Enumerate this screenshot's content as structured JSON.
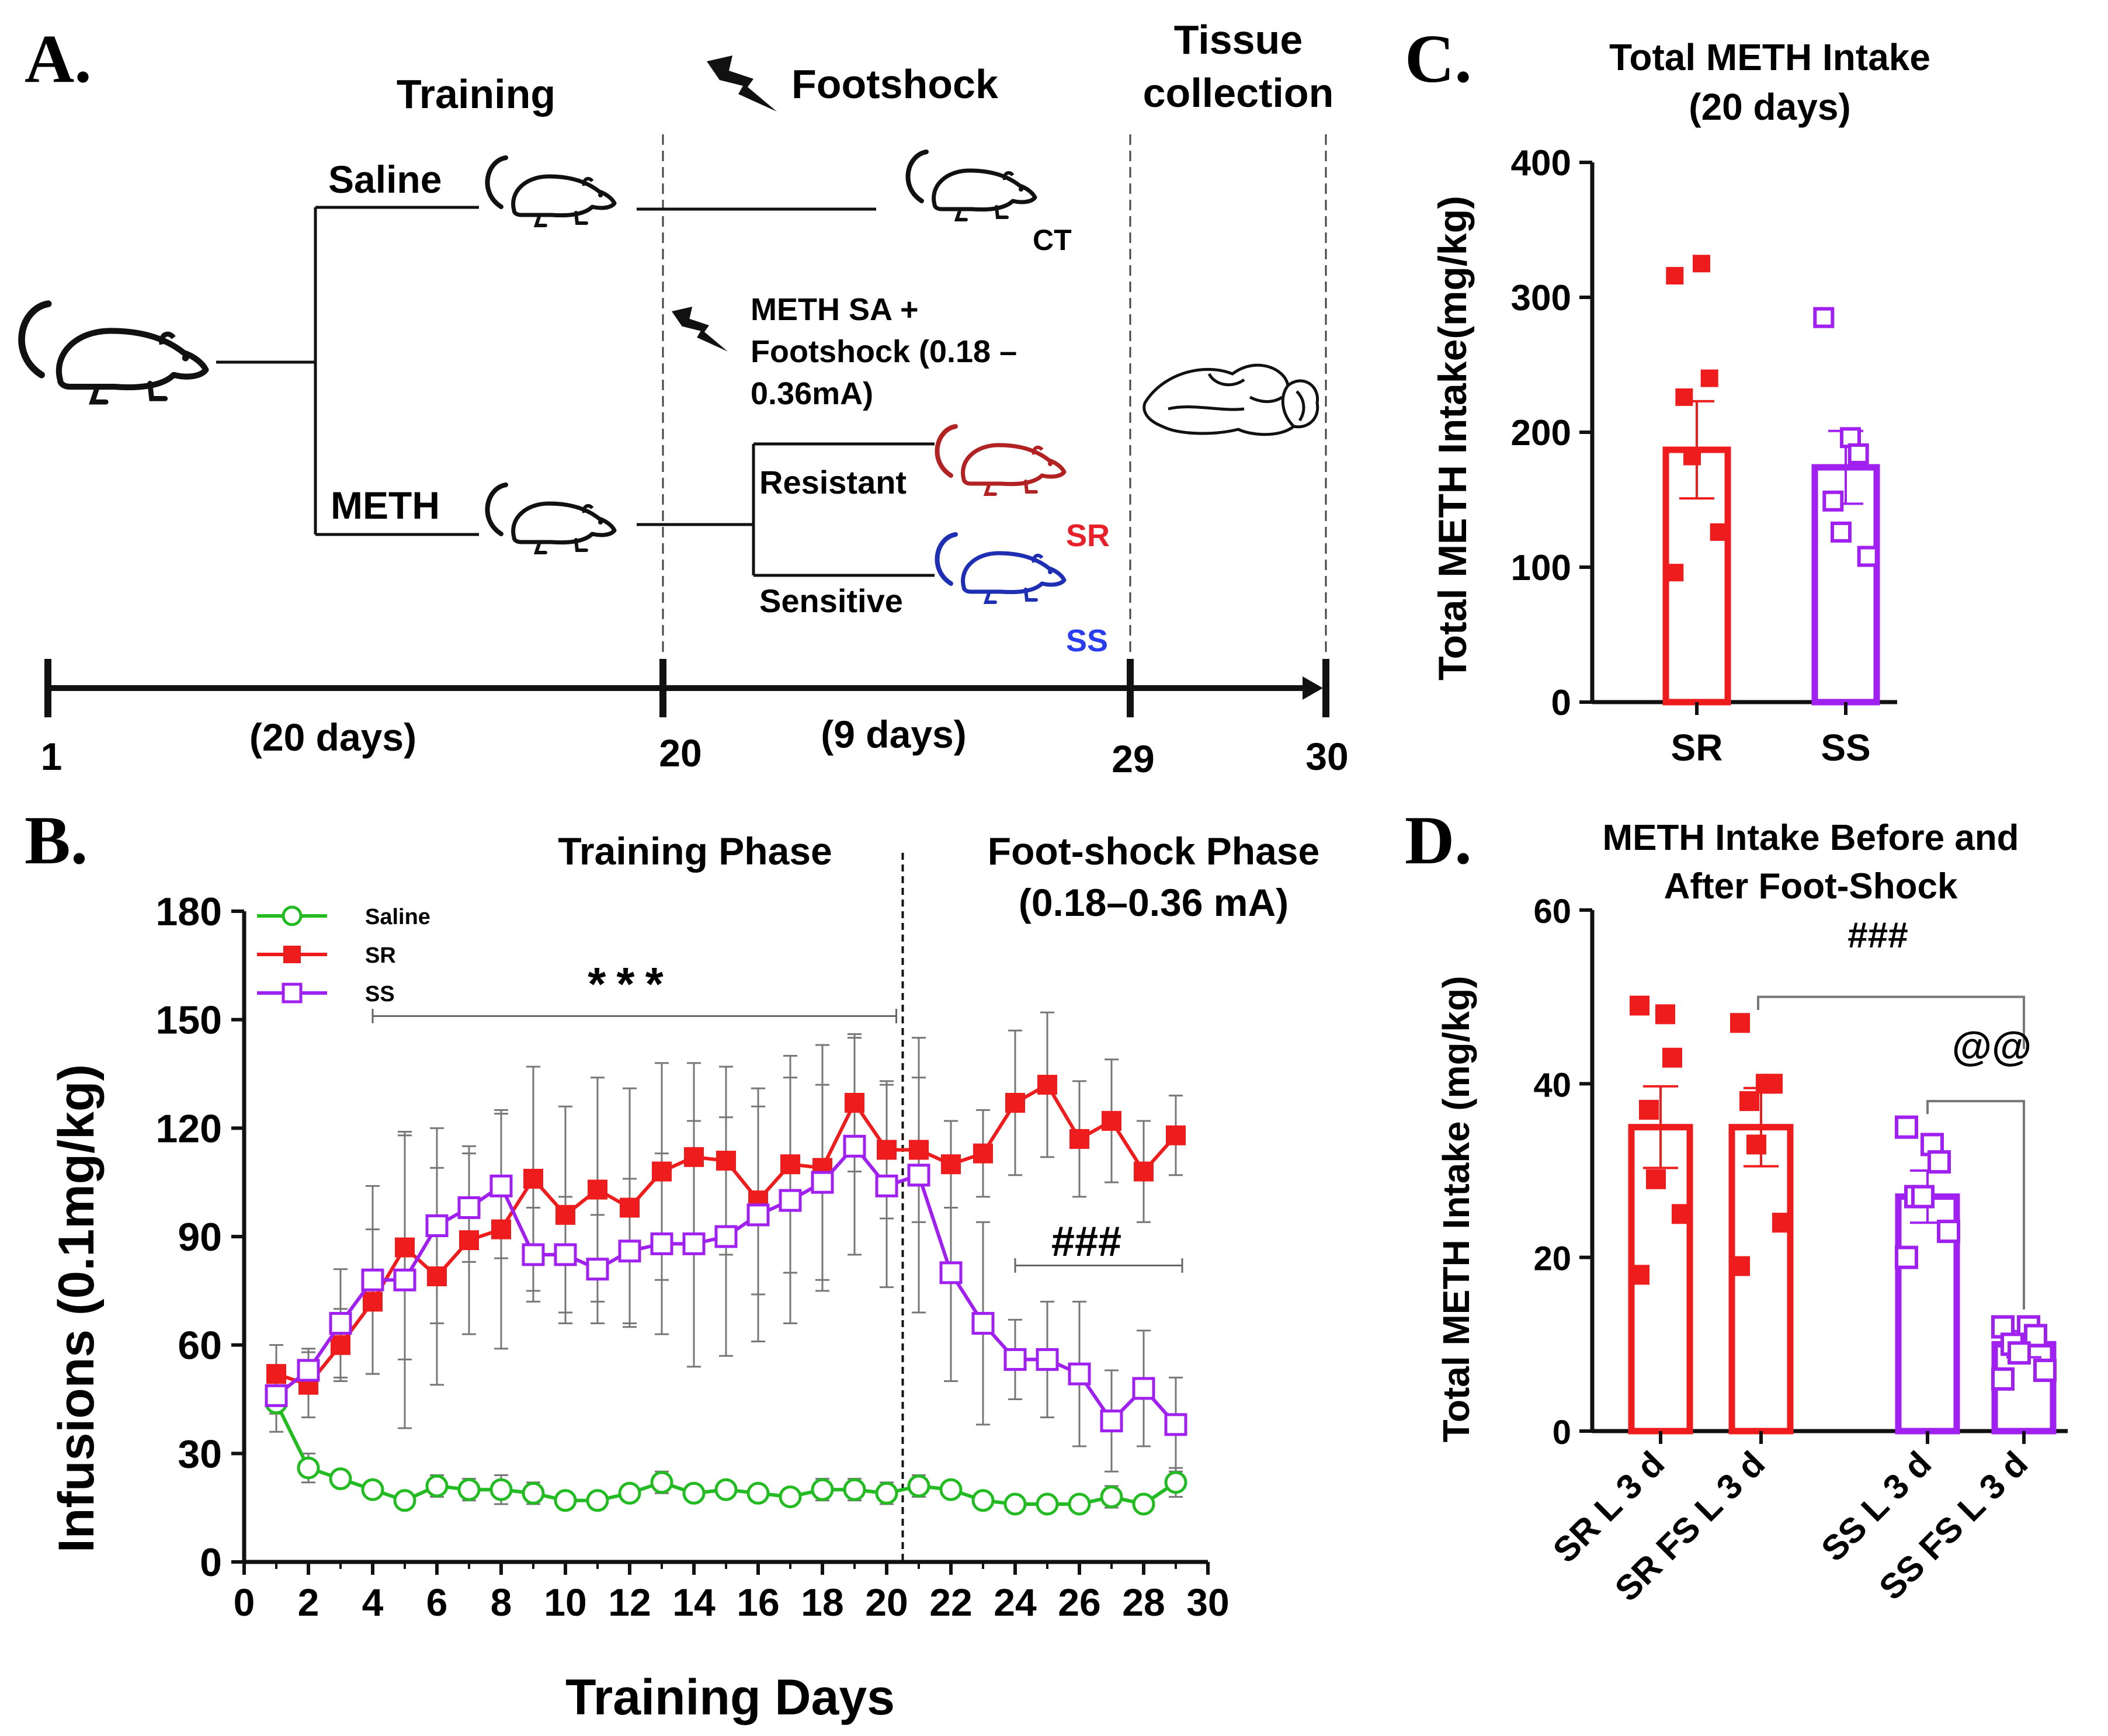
{
  "panel_labels": {
    "a": "A.",
    "b": "B.",
    "c": "C.",
    "d": "D."
  },
  "panel_a": {
    "training": "Training",
    "footshock": "Footshock",
    "tissue_line1": "Tissue",
    "tissue_line2": "collection",
    "saline": "Saline",
    "meth": "METH",
    "ct": "CT",
    "sa_line1": "METH SA +",
    "sa_line2": "Footshock (0.18 –",
    "sa_line3": "0.36mA)",
    "resistant": "Resistant",
    "sensitive": "Sensitive",
    "sr": "SR",
    "ss": "SS",
    "timeline": {
      "t1": "1",
      "t20": "20",
      "t29": "29",
      "t30": "30",
      "d20": "(20 days)",
      "d9": "(9 days)"
    },
    "colors": {
      "sr": "#b22222",
      "ss": "#1f2fb4",
      "sr_label": "#e8202a",
      "ss_label": "#2a3ef0"
    }
  },
  "chart_data": [
    {
      "id": "B",
      "type": "line",
      "title": "",
      "phase_labels": [
        "Training Phase",
        "Foot-shock Phase",
        "(0.18–0.36 mA)"
      ],
      "xlabel": "Training Days",
      "ylabel": "Infusions (0.1mg/kg)",
      "xlim": [
        0,
        30
      ],
      "ylim": [
        0,
        180
      ],
      "xticks": [
        0,
        2,
        4,
        6,
        8,
        10,
        12,
        14,
        16,
        18,
        20,
        22,
        24,
        26,
        28,
        30
      ],
      "yticks": [
        0,
        30,
        60,
        90,
        120,
        150,
        180
      ],
      "phase_divider_x": 20.5,
      "x": [
        1,
        2,
        3,
        4,
        5,
        6,
        7,
        8,
        9,
        10,
        11,
        12,
        13,
        14,
        15,
        16,
        17,
        18,
        19,
        20,
        21,
        22,
        23,
        24,
        25,
        26,
        27,
        28,
        29
      ],
      "series": [
        {
          "name": "Saline",
          "color": "#22bb22",
          "marker": "circle-open",
          "values": [
            44,
            26,
            23,
            20,
            17,
            21,
            20,
            20,
            19,
            17,
            17,
            19,
            22,
            19,
            20,
            19,
            18,
            20,
            20,
            19,
            21,
            20,
            17,
            16,
            16,
            16,
            18,
            16,
            22
          ],
          "errors": [
            8,
            4,
            2,
            2,
            2,
            3,
            3,
            4,
            3,
            2,
            2,
            2,
            3,
            2,
            2,
            2,
            2,
            3,
            3,
            3,
            3,
            2,
            2,
            2,
            2,
            2,
            3,
            2,
            4
          ]
        },
        {
          "name": "SR",
          "color": "#ee1c1c",
          "marker": "square-filled",
          "values": [
            52,
            49,
            60,
            72,
            87,
            79,
            89,
            92,
            106,
            96,
            103,
            98,
            108,
            112,
            111,
            100,
            110,
            109,
            127,
            114,
            114,
            110,
            113,
            127,
            132,
            117,
            122,
            108,
            118
          ],
          "errors": [
            8,
            9,
            10,
            20,
            31,
            30,
            26,
            33,
            31,
            30,
            31,
            33,
            30,
            26,
            26,
            26,
            30,
            34,
            19,
            19,
            20,
            12,
            12,
            20,
            20,
            16,
            17,
            14,
            11
          ]
        },
        {
          "name": "SS",
          "color": "#a020f0",
          "marker": "square-open",
          "values": [
            46,
            53,
            66,
            78,
            78,
            93,
            98,
            104,
            85,
            85,
            81,
            86,
            88,
            88,
            90,
            96,
            100,
            105,
            115,
            104,
            107,
            80,
            66,
            56,
            56,
            52,
            39,
            48,
            38
          ],
          "errors": [
            5,
            6,
            15,
            26,
            41,
            27,
            15,
            20,
            13,
            16,
            15,
            20,
            25,
            34,
            33,
            35,
            34,
            27,
            30,
            28,
            38,
            30,
            28,
            11,
            16,
            20,
            14,
            16,
            13
          ]
        }
      ],
      "annotations": {
        "training_sig": "***",
        "footshock_sig": "###"
      },
      "legend": "top-left"
    },
    {
      "id": "C",
      "type": "bar",
      "title": "Total METH Intake",
      "subtitle": "(20 days)",
      "ylabel": "Total METH Intake(mg/kg)",
      "ylim": [
        0,
        400
      ],
      "yticks": [
        0,
        100,
        200,
        300,
        400
      ],
      "categories": [
        "SR",
        "SS"
      ],
      "values": [
        187,
        174
      ],
      "errors": [
        36,
        27
      ],
      "colors": [
        "#ee1c1c",
        "#a020f0"
      ],
      "points": [
        [
          316,
          325,
          240,
          226,
          182,
          126,
          96
        ],
        [
          285,
          196,
          184,
          149,
          126,
          108
        ]
      ]
    },
    {
      "id": "D",
      "type": "bar",
      "title": "METH Intake Before and",
      "subtitle": "After Foot-Shock",
      "ylabel": "Total METH Intake (mg/kg)",
      "ylim": [
        0,
        60
      ],
      "yticks": [
        0,
        20,
        40,
        60
      ],
      "categories": [
        "SR L 3 d",
        "SR FS L 3 d",
        "SS L 3 d",
        "SS FS L 3 d"
      ],
      "values": [
        35,
        35,
        27,
        10
      ],
      "errors": [
        4.7,
        4.5,
        3,
        1.5
      ],
      "colors": [
        "#ee1c1c",
        "#ee1c1c",
        "#a020f0",
        "#a020f0"
      ],
      "points": [
        [
          49,
          48,
          43,
          37,
          29,
          25,
          18
        ],
        [
          47,
          40,
          40,
          38,
          33,
          24,
          19
        ],
        [
          35,
          33,
          31,
          27,
          27,
          23,
          20
        ],
        [
          12,
          12,
          11,
          10,
          9,
          7,
          6
        ]
      ],
      "annotations": {
        "sig1": "###",
        "sig2": "@@"
      }
    }
  ]
}
